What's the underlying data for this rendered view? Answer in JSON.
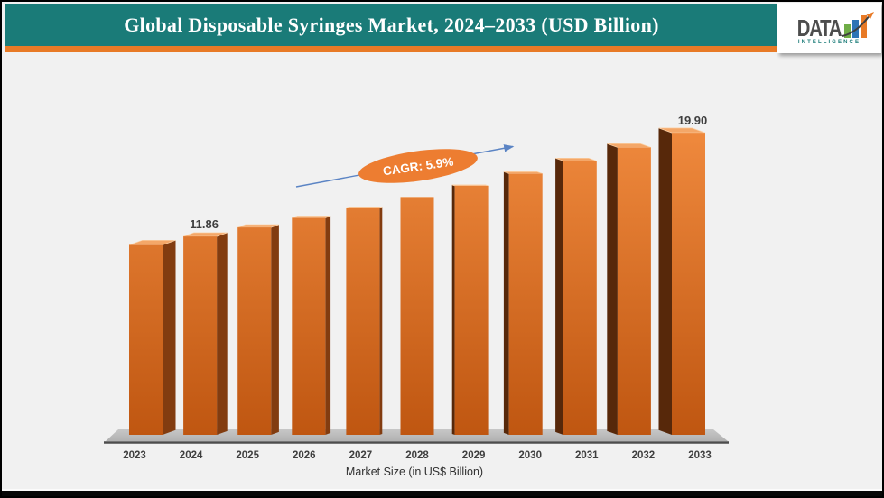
{
  "header": {
    "title": "Global Disposable Syringes Market, 2024–2033 (USD Billion)"
  },
  "logo": {
    "name": "DATA",
    "subtitle": "INTELLIGENCE",
    "bar_colors": [
      "#6FAD47",
      "#2E74B5",
      "#E87A26"
    ]
  },
  "colors": {
    "header_teal": "#1A7B78",
    "accent_orange": "#E87A26",
    "bar_front_top": "#F08A3E",
    "bar_front_bottom": "#BE5510",
    "bar_side_right": "#823C10",
    "bar_side_left": "#57280A",
    "floor_gray": "#BCBCBC",
    "arrow_blue": "#5B84C4",
    "badge_orange": "#ED7D31",
    "background": "#F1F1F1"
  },
  "chart_data": {
    "type": "bar",
    "title": "Global Disposable Syringes Market, 2024–2033 (USD Billion)",
    "categories": [
      "2023",
      "2024",
      "2025",
      "2026",
      "2027",
      "2028",
      "2029",
      "2030",
      "2031",
      "2032",
      "2033"
    ],
    "values": [
      11.2,
      11.86,
      12.56,
      13.3,
      14.08,
      14.91,
      15.79,
      16.73,
      17.71,
      18.76,
      19.9
    ],
    "labeled_points": [
      {
        "category": "2024",
        "label": "11.86"
      },
      {
        "category": "2033",
        "label": "19.90"
      }
    ],
    "annotation": "CAGR: 5.9%",
    "xlabel": "Market Size (in US$ Billion)",
    "ylabel": "",
    "legend": "none",
    "grid": false,
    "style": "3d-bars, single orange series, trend arrow with CAGR badge"
  }
}
